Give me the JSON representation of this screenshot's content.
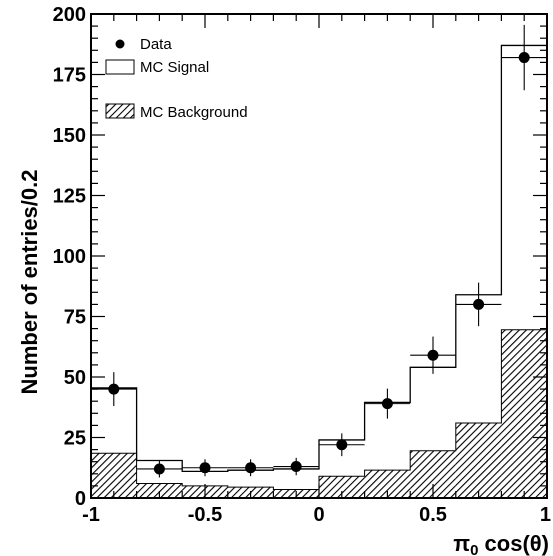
{
  "chart_data": {
    "type": "bar",
    "xlabel": "π",
    "xlabel_subscript": "0",
    "xlabel_suffix": " cos(θ)",
    "ylabel": "Number of entries/0.2",
    "xlim": [
      -1,
      1
    ],
    "ylim": [
      0,
      200
    ],
    "x_ticks": [
      -1,
      -0.5,
      0,
      0.5,
      1
    ],
    "x_tick_labels": [
      "-1",
      "-0.5",
      "0",
      "0.5",
      "1"
    ],
    "y_ticks": [
      0,
      25,
      50,
      75,
      100,
      125,
      150,
      175,
      200
    ],
    "y_tick_labels": [
      "0",
      "25",
      "50",
      "75",
      "100",
      "125",
      "150",
      "175",
      "200"
    ],
    "bin_edges": [
      -1,
      -0.8,
      -0.6,
      -0.4,
      -0.2,
      0,
      0.2,
      0.4,
      0.6,
      0.8,
      1
    ],
    "series": [
      {
        "name": "Data",
        "style": "points_with_errors",
        "x": [
          -0.9,
          -0.7,
          -0.5,
          -0.3,
          -0.1,
          0.1,
          0.3,
          0.5,
          0.7,
          0.9
        ],
        "values": [
          45,
          12,
          12.5,
          12.5,
          13,
          22,
          39,
          59,
          80,
          182
        ],
        "errors": [
          7,
          3.5,
          3.5,
          3.5,
          3.6,
          4.7,
          6.2,
          7.7,
          9,
          13.5
        ]
      },
      {
        "name": "MC Signal",
        "style": "step_outline",
        "values": [
          45.5,
          15.5,
          11,
          11.5,
          12,
          24,
          39.5,
          54,
          84,
          187
        ]
      },
      {
        "name": "MC Background",
        "style": "hatched_fill",
        "values": [
          18.5,
          6,
          5,
          4.5,
          3.5,
          9,
          11.5,
          19.5,
          31,
          69.5
        ]
      }
    ],
    "legend_position": "top-left",
    "colors": {
      "axis": "#000000",
      "hatch": "#000000",
      "background": "#ffffff"
    }
  }
}
